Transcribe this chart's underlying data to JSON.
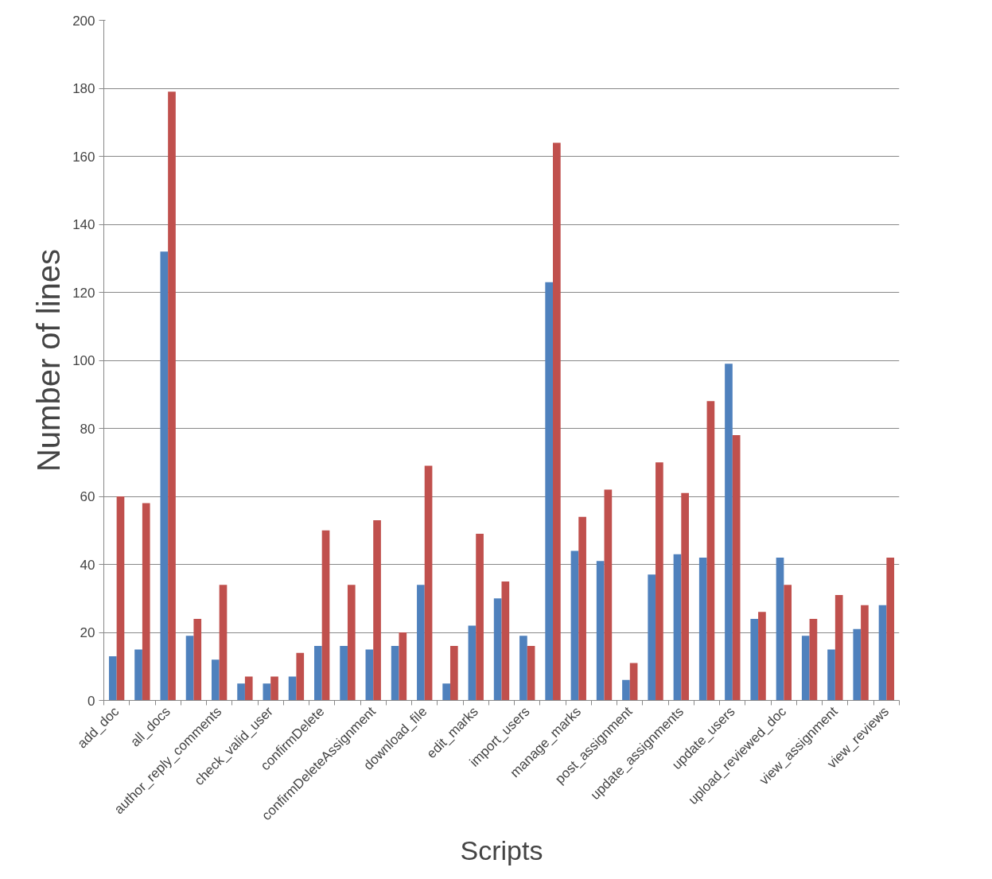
{
  "chart_data": {
    "type": "bar",
    "xlabel": "Scripts",
    "ylabel": "Number of lines",
    "categories": [
      "add_doc",
      null,
      "all_docs",
      null,
      "author_reply_comments",
      null,
      "check_valid_user",
      null,
      "confirmDelete",
      null,
      "confirmDeleteAssignment",
      null,
      "download_file",
      null,
      "edit_marks",
      null,
      "import_users",
      null,
      "manage_marks",
      null,
      "post_assignment",
      null,
      "update_assignments",
      null,
      "update_users",
      null,
      "upload_reviewed_doc",
      null,
      "view_assignment",
      null,
      "view_reviews"
    ],
    "series": [
      {
        "color": "#4f81bd",
        "values": [
          13,
          15,
          132,
          19,
          12,
          5,
          5,
          7,
          16,
          16,
          15,
          16,
          34,
          5,
          22,
          30,
          19,
          123,
          44,
          41,
          6,
          37,
          43,
          42,
          99,
          24,
          42,
          19,
          15,
          21,
          28
        ]
      },
      {
        "color": "#c0504d",
        "values": [
          60,
          58,
          179,
          24,
          34,
          7,
          7,
          14,
          50,
          34,
          53,
          20,
          69,
          16,
          49,
          35,
          16,
          164,
          54,
          62,
          11,
          70,
          61,
          88,
          78,
          26,
          34,
          24,
          31,
          28,
          42
        ]
      }
    ],
    "ylim": [
      0,
      200
    ],
    "yticks": [
      0,
      20,
      40,
      60,
      80,
      100,
      120,
      140,
      160,
      180,
      200
    ],
    "grid": "y"
  }
}
